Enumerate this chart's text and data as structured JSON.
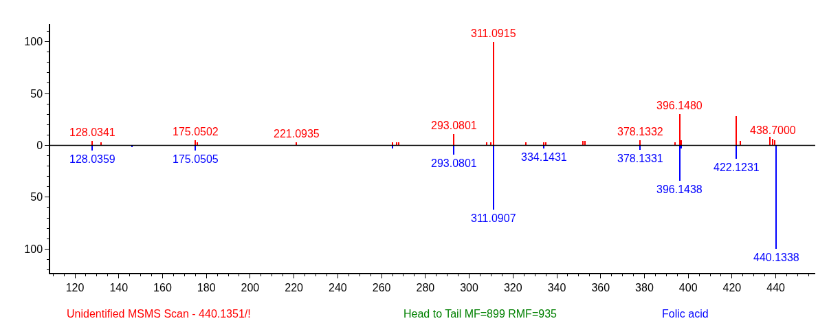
{
  "chart_data": {
    "type": "bar",
    "series": [
      {
        "color": "#ff0000",
        "x": [
          128.0341,
          132,
          175.0502,
          176,
          221.0935,
          265,
          267,
          268,
          293.0801,
          308,
          310,
          311.0915,
          326,
          334,
          335,
          352,
          353,
          378.1332,
          394,
          396.148,
          397,
          422,
          424,
          437.5,
          438.7,
          439.7
        ],
        "values": [
          4,
          3,
          5,
          3,
          3,
          3,
          3,
          3,
          11,
          3,
          3,
          100,
          3,
          3,
          3,
          4,
          4,
          5,
          3,
          30,
          5,
          28,
          4,
          8,
          6,
          5
        ]
      },
      {
        "color": "#0000ff",
        "x": [
          128.0359,
          146,
          175.0505,
          265,
          293.0801,
          311.0907,
          334.1431,
          378.1331,
          396.1438,
          397,
          422.1231,
          440.1338
        ],
        "values": [
          -5,
          -2,
          -5,
          -3,
          -9,
          -62,
          -3,
          -4,
          -34,
          -3,
          -13,
          -100
        ]
      }
    ],
    "xlim": [
      108.7,
      458
    ],
    "xticks": [
      120,
      140,
      160,
      180,
      200,
      220,
      240,
      260,
      280,
      300,
      320,
      340,
      360,
      380,
      400,
      420,
      440
    ],
    "ylim": [
      -123,
      117
    ],
    "yticks": [
      {
        "value": -100,
        "label": "100"
      },
      {
        "value": -50,
        "label": "50"
      },
      0,
      50,
      100
    ],
    "ref_lines": [
      {
        "axis": "y",
        "value": 0,
        "color": "#000000"
      }
    ],
    "annotations": [
      {
        "text": "128.0341",
        "x": 128.0341,
        "y": 4
      },
      {
        "text": "175.0502",
        "x": 175.0502,
        "y": 5
      },
      {
        "text": "221.0935",
        "x": 221.0935,
        "y": 3
      },
      {
        "text": "293.0801",
        "x": 293.0801,
        "y": 11
      },
      {
        "text": "311.0915",
        "x": 311.0915,
        "y": 100
      },
      {
        "text": "378.1332",
        "x": 378.1332,
        "y": 5
      },
      {
        "text": "396.1480",
        "x": 396.148,
        "y": 30
      },
      {
        "text": "438.7000",
        "x": 438.7,
        "y": 6
      },
      {
        "text": "128.0359",
        "x": 128.0359,
        "y": -5
      },
      {
        "text": "175.0505",
        "x": 175.0505,
        "y": -5
      },
      {
        "text": "293.0801",
        "x": 293.0801,
        "y": -9
      },
      {
        "text": "311.0907",
        "x": 311.0907,
        "y": -62
      },
      {
        "text": "334.1431",
        "x": 334.1431,
        "y": -3
      },
      {
        "text": "378.1331",
        "x": 378.1331,
        "y": -4
      },
      {
        "text": "396.1438",
        "x": 396.1438,
        "y": -34
      },
      {
        "text": "422.1231",
        "x": 422.1231,
        "y": -13
      },
      {
        "text": "440.1338",
        "x": 440.1338,
        "y": -100
      },
      "Unidentified MSMS Scan - 440.1351/!",
      "Head to Tail MF=899 RMF=935",
      "Folic acid"
    ]
  }
}
